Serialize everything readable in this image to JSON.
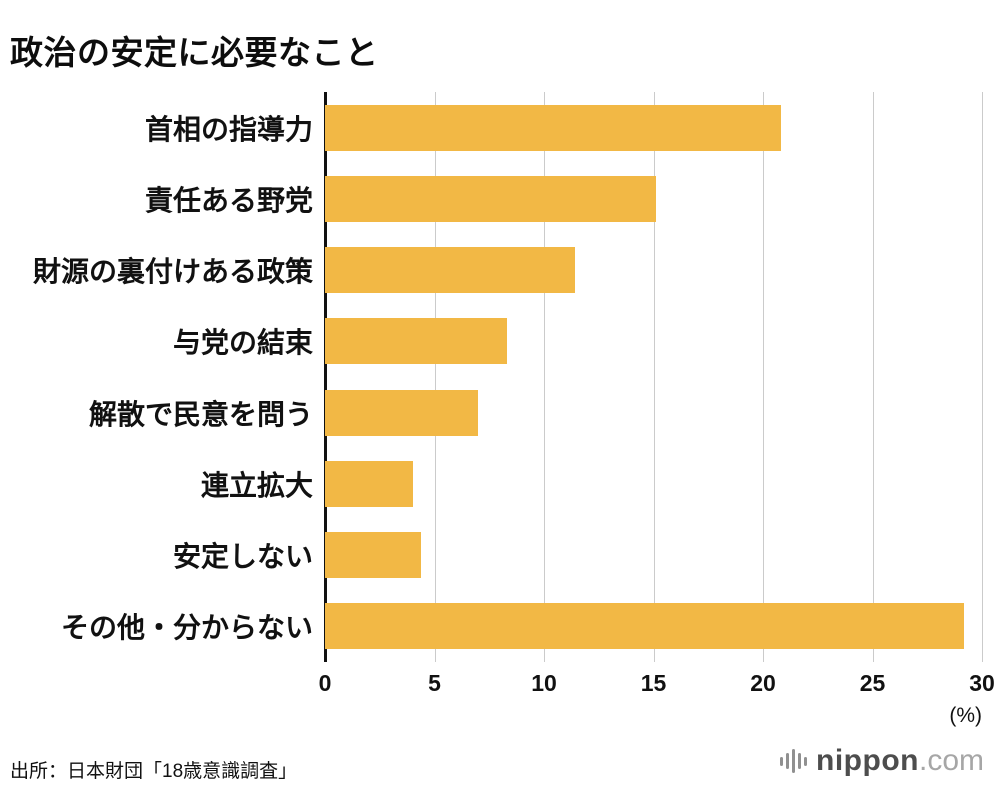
{
  "title": "政治の安定に必要なこと",
  "source": "出所：日本財団「18歳意識調査」",
  "logo": {
    "name": "nippon",
    "tld": ".com"
  },
  "chart_data": {
    "type": "bar",
    "orientation": "horizontal",
    "title": "政治の安定に必要なこと",
    "categories": [
      "首相の指導力",
      "責任ある野党",
      "財源の裏付けある政策",
      "与党の結束",
      "解散で民意を問う",
      "連立拡大",
      "安定しない",
      "その他・分からない"
    ],
    "values": [
      20.8,
      15.1,
      11.4,
      8.3,
      7.0,
      4.0,
      4.4,
      29.2
    ],
    "xlabel": "",
    "ylabel": "",
    "xlim": [
      0,
      30
    ],
    "xticks": [
      0,
      5,
      10,
      15,
      20,
      25,
      30
    ],
    "unit_label": "(%)",
    "bar_color": "#F2B845",
    "gridline_color": "#cbcbcb",
    "grid": true,
    "legend": false
  }
}
